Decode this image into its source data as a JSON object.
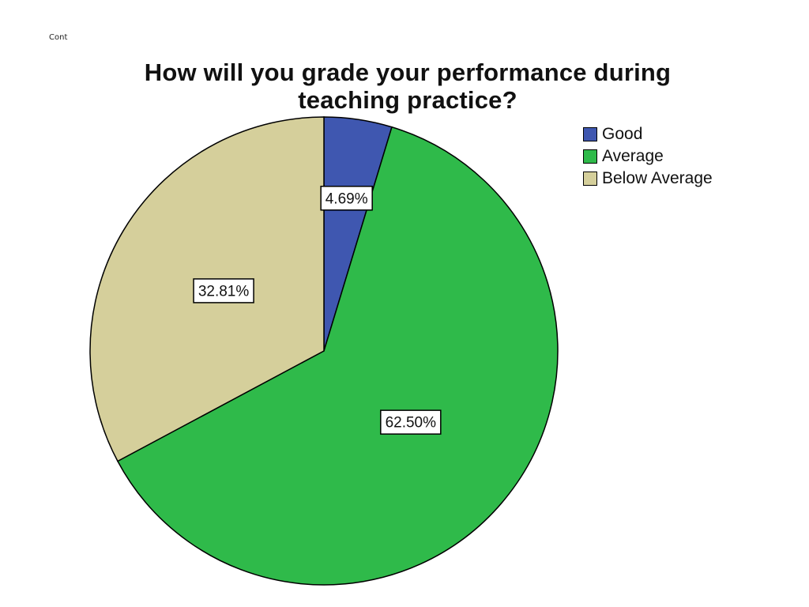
{
  "header": {
    "corner_text": "Cont"
  },
  "chart_data": {
    "type": "pie",
    "title": "How will you grade your performance during teaching practice?",
    "title_lines": [
      "How will you grade your performance during",
      "teaching practice?"
    ],
    "start_angle_deg": 0,
    "direction": "clockwise",
    "legend_position": "top-right",
    "slices": [
      {
        "label": "Good",
        "value": 4.69,
        "display": "4.69%",
        "color": "#3f57b0"
      },
      {
        "label": "Average",
        "value": 62.5,
        "display": "62.50%",
        "color": "#2fba4a"
      },
      {
        "label": "Below Average",
        "value": 32.81,
        "display": "32.81%",
        "color": "#d5cf9b"
      }
    ]
  }
}
